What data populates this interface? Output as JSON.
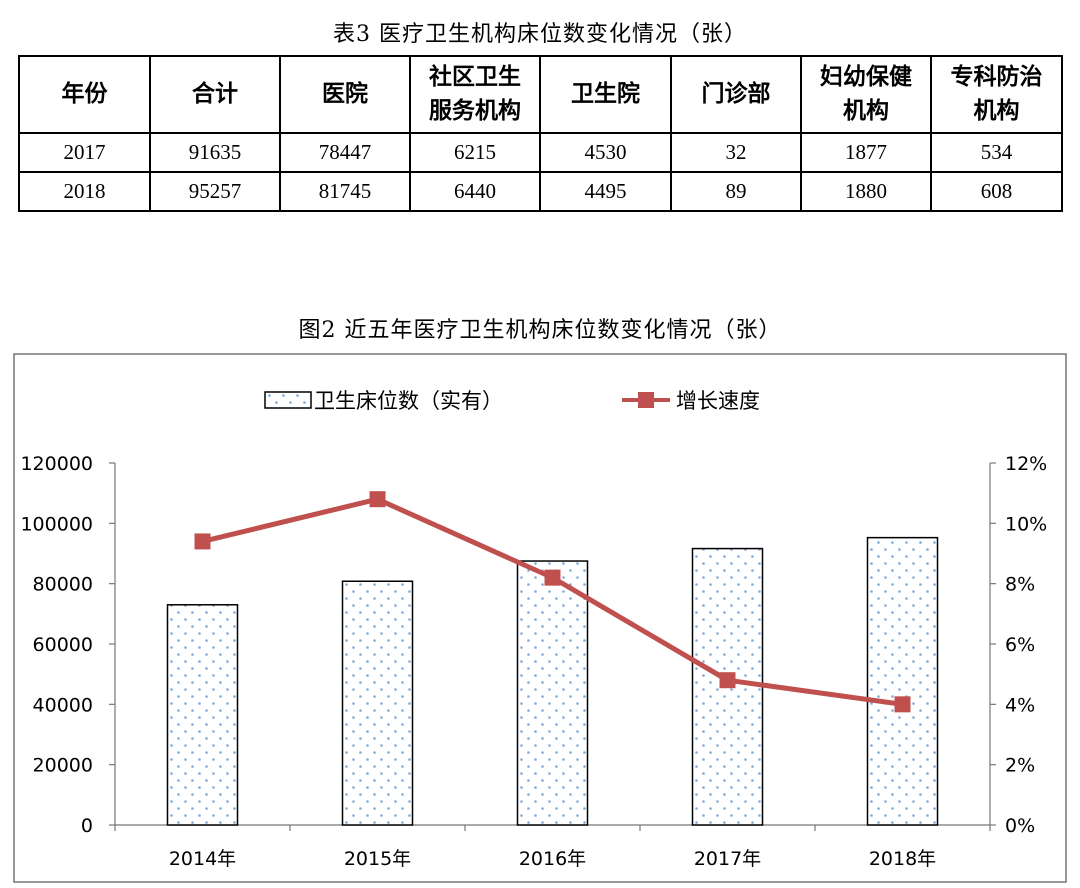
{
  "table": {
    "title": "表3  医疗卫生机构床位数变化情况（张）",
    "headers": [
      "年份",
      "合计",
      "医院",
      "社区卫生\n服务机构",
      "卫生院",
      "门诊部",
      "妇幼保健\n机构",
      "专科防治\n机构"
    ],
    "rows": [
      [
        "2017",
        "91635",
        "78447",
        "6215",
        "4530",
        "32",
        "1877",
        "534"
      ],
      [
        "2018",
        "95257",
        "81745",
        "6440",
        "4495",
        "89",
        "1880",
        "608"
      ]
    ]
  },
  "figure": {
    "title": "图2      近五年医疗卫生机构床位数变化情况（张）"
  },
  "chart_data": {
    "type": "bar",
    "categories": [
      "2014年",
      "2015年",
      "2016年",
      "2017年",
      "2018年"
    ],
    "series": [
      {
        "name": "卫生床位数（实有）",
        "type": "bar",
        "axis": "left",
        "values": [
          73000,
          80800,
          87500,
          91635,
          95257
        ],
        "color": "#9dc3e6"
      },
      {
        "name": "增长速度",
        "type": "line",
        "axis": "right",
        "values": [
          9.4,
          10.8,
          8.2,
          4.8,
          4.0
        ],
        "color": "#c0504d"
      }
    ],
    "y_left": {
      "min": 0,
      "max": 120000,
      "ticks": [
        "0",
        "20000",
        "40000",
        "60000",
        "80000",
        "100000",
        "120000"
      ]
    },
    "y_right": {
      "min": 0,
      "max": 12,
      "ticks": [
        "0%",
        "2%",
        "4%",
        "6%",
        "8%",
        "10%",
        "12%"
      ]
    },
    "legend_position": "top",
    "grid": false
  }
}
